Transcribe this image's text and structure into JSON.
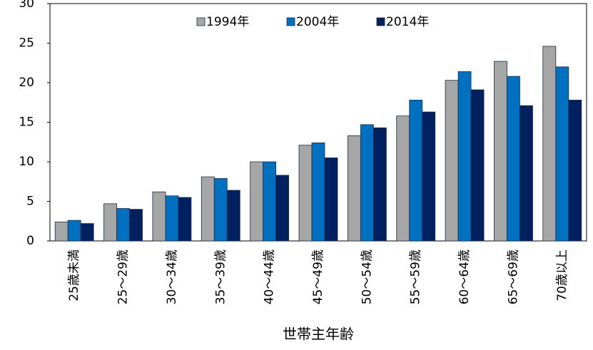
{
  "chart_data": {
    "type": "bar",
    "x_label": "世帯主年齢",
    "categories": [
      "25歳未満",
      "25～29歳",
      "30～34歳",
      "35～39歳",
      "40～44歳",
      "45～49歳",
      "50～54歳",
      "55～59歳",
      "60～64歳",
      "65～69歳",
      "70歳以上"
    ],
    "series": [
      {
        "name": "1994年",
        "color": "#a6a6a6",
        "values": [
          2.4,
          4.7,
          6.2,
          8.1,
          10.0,
          12.1,
          13.3,
          15.8,
          20.3,
          22.7,
          24.6
        ]
      },
      {
        "name": "2004年",
        "color": "#0070c0",
        "values": [
          2.6,
          4.1,
          5.7,
          7.9,
          10.0,
          12.4,
          14.7,
          17.8,
          21.4,
          20.8,
          22.0
        ]
      },
      {
        "name": "2014年",
        "color": "#002060",
        "values": [
          2.2,
          4.0,
          5.5,
          6.4,
          8.3,
          10.5,
          14.3,
          16.3,
          19.1,
          17.1,
          17.8
        ]
      }
    ],
    "ylim": [
      0,
      30
    ],
    "yticks": [
      0,
      5,
      10,
      15,
      20,
      25,
      30
    ],
    "grid": false,
    "legend": "top"
  }
}
